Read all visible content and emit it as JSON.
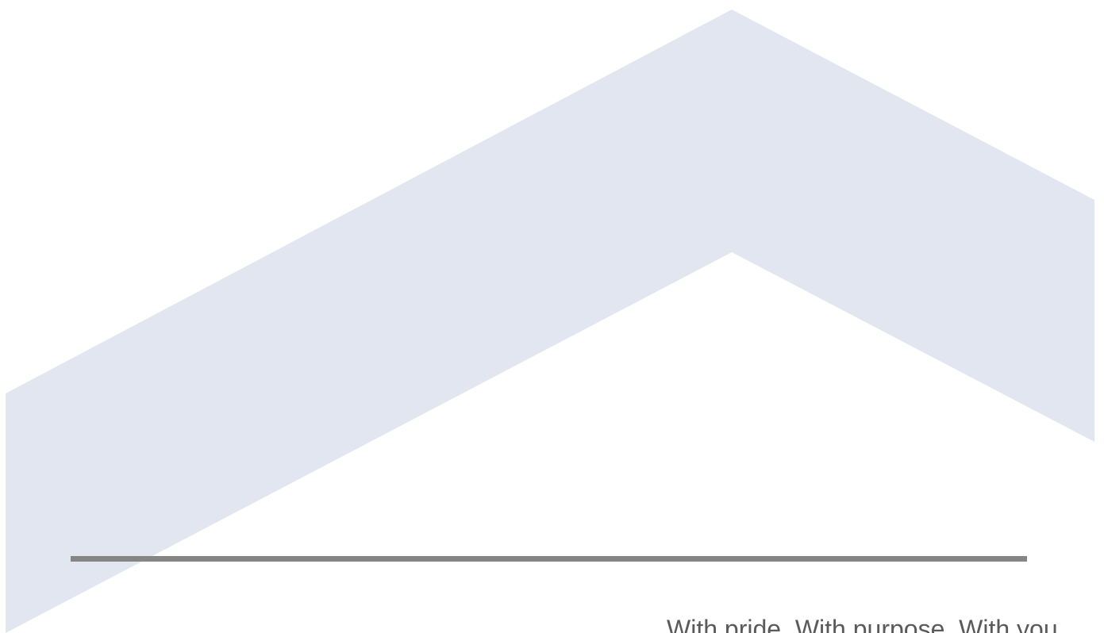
{
  "colors": {
    "chevron": "#e2e6f0",
    "divider": "#858585",
    "tagline": "#5a5a5a",
    "background": "#ffffff"
  },
  "tagline": "With pride. With purpose. With you."
}
